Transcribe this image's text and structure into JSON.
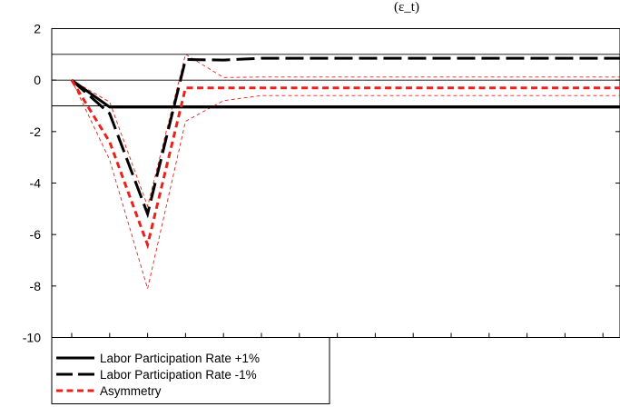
{
  "header": {
    "partial_title": "(ε_t)"
  },
  "chart_data": {
    "type": "line",
    "title": "",
    "xlabel": "",
    "ylabel": "",
    "x": [
      1,
      2,
      3,
      4,
      5,
      6,
      7,
      8,
      9,
      10,
      11,
      12,
      13,
      14,
      15,
      16
    ],
    "ylim": [
      -10,
      2
    ],
    "yticks": [
      2,
      0,
      -2,
      -4,
      -6,
      -8,
      -10
    ],
    "ytick_labels": [
      "2",
      "0",
      "-2",
      "-4",
      "-6",
      "-8",
      "-10"
    ],
    "reference_lines": [
      1,
      0,
      -1
    ],
    "grid": false,
    "legend_position": "bottom-left",
    "series": [
      {
        "name": "Labor Participation Rate +1%",
        "color": "#000000",
        "style": "solid",
        "values": [
          0,
          -1.05,
          -1.05,
          -1.05,
          -1.05,
          -1.05,
          -1.05,
          -1.05,
          -1.05,
          -1.05,
          -1.05,
          -1.05,
          -1.05,
          -1.05,
          -1.05,
          -1.05
        ]
      },
      {
        "name": "Labor Participation Rate -1%",
        "color": "#000000",
        "style": "long-dash",
        "values": [
          0,
          -1.3,
          -5.2,
          0.8,
          0.78,
          0.85,
          0.85,
          0.85,
          0.85,
          0.85,
          0.85,
          0.85,
          0.85,
          0.85,
          0.85,
          0.85
        ]
      },
      {
        "name": "Asymmetry",
        "color": "#e8231d",
        "style": "short-dash",
        "values": [
          0,
          -2.4,
          -6.4,
          -0.3,
          -0.3,
          -0.3,
          -0.3,
          -0.3,
          -0.3,
          -0.3,
          -0.3,
          -0.3,
          -0.3,
          -0.3,
          -0.3,
          -0.3
        ]
      },
      {
        "name": "",
        "color": "#e8231d",
        "style": "thin-dash-band",
        "values": [
          0,
          -0.85,
          -4.9,
          1.0,
          0.1,
          0.12,
          0.12,
          0.12,
          0.12,
          0.12,
          0.12,
          0.12,
          0.12,
          0.12,
          0.12,
          0.12
        ]
      },
      {
        "name": "",
        "color": "#e8231d",
        "style": "thin-dash-band",
        "values": [
          0,
          -3.1,
          -8.1,
          -1.6,
          -0.8,
          -0.6,
          -0.6,
          -0.6,
          -0.6,
          -0.6,
          -0.6,
          -0.6,
          -0.6,
          -0.6,
          -0.6,
          -0.6
        ]
      }
    ]
  }
}
